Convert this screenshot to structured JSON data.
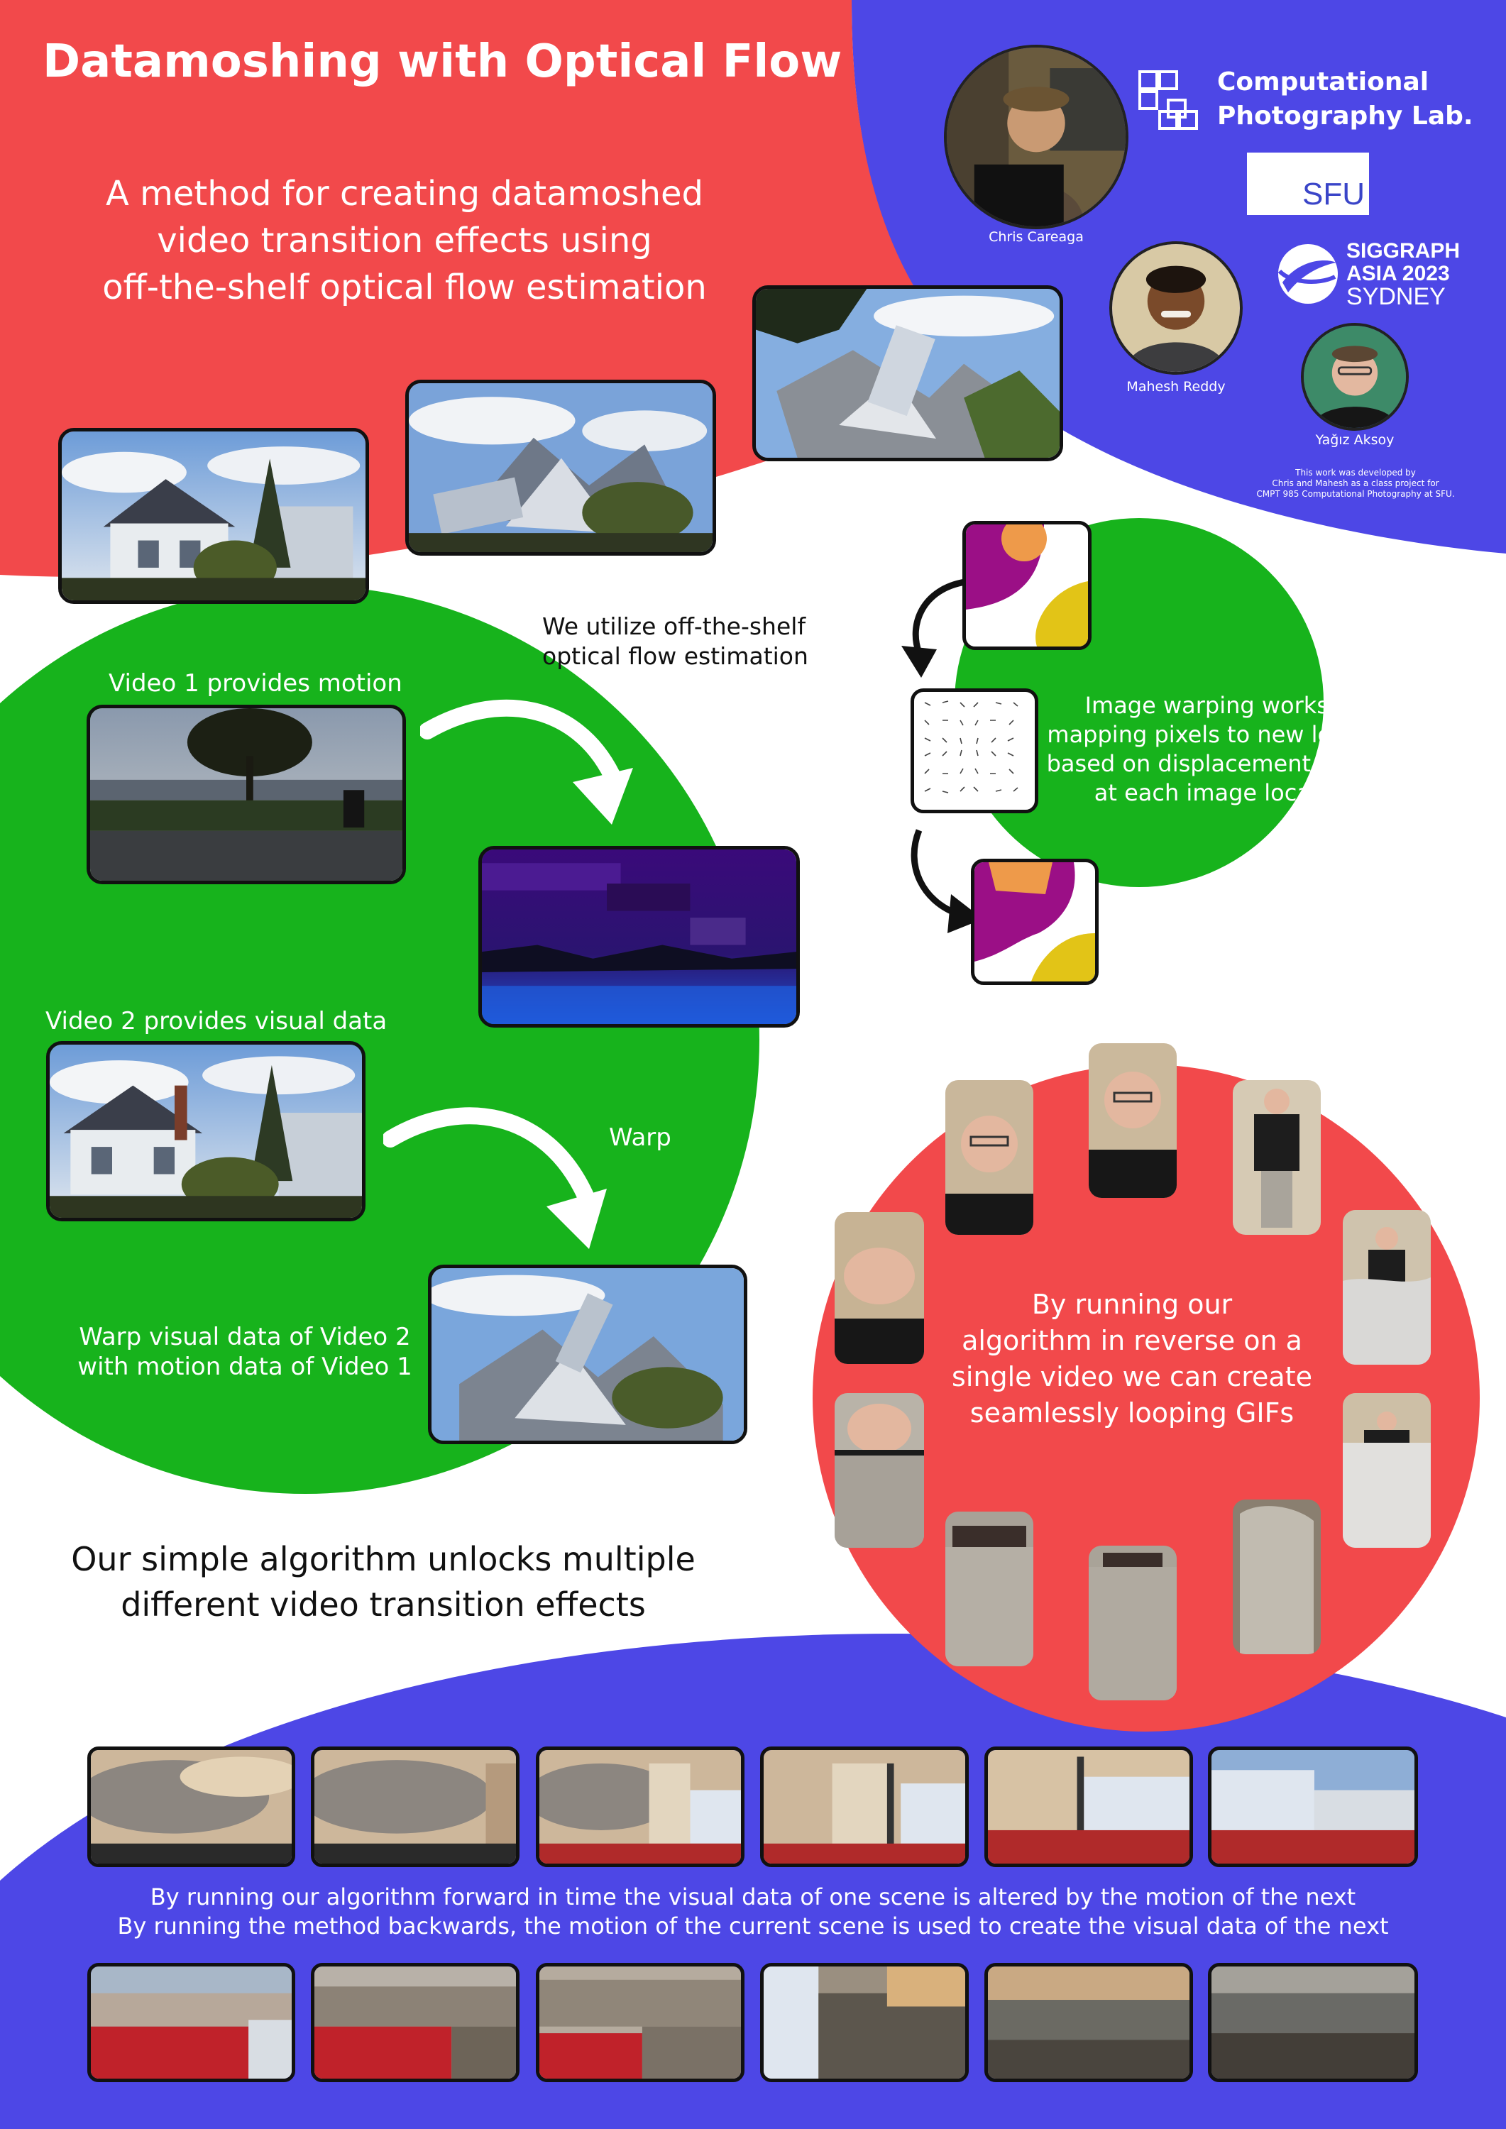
{
  "title": "Datamoshing with Optical Flow",
  "subtitle": [
    "A method for creating datamoshed",
    "video transition effects using",
    "off-the-shelf optical flow estimation"
  ],
  "lab": {
    "line1": "Computational",
    "line2": "Photography Lab."
  },
  "sfu": "SFU",
  "siggraph": {
    "line1": "SIGGRAPH",
    "line2": "ASIA 2023",
    "line3": "SYDNEY"
  },
  "authors": [
    "Chris Careaga",
    "Mahesh Reddy",
    "Yağız Aksoy"
  ],
  "note": [
    "This work was developed by",
    "Chris and Mahesh as a class project for",
    "CMPT 985 Computational Photography at SFU."
  ],
  "flow_label": [
    "We utilize off-the-shelf",
    "optical flow estimation"
  ],
  "video1_label": "Video 1 provides motion",
  "video2_label": "Video 2 provides visual data",
  "warp_label": "Warp",
  "warp_desc": [
    "Warp visual data of Video 2",
    "with motion data of Video 1"
  ],
  "warping_desc": [
    "Image warping works by",
    "mapping pixels to new location",
    "based on displacement vectors",
    "at each image location"
  ],
  "loop_desc": [
    "By running our",
    "algorithm in reverse on a",
    "single video we can create",
    "seamlessly looping GIFs"
  ],
  "unlock": [
    "Our simple algorithm unlocks multiple",
    "different video transition effects"
  ],
  "bottom_desc": [
    "By running our algorithm forward in time the visual data of one scene is altered by the motion of the next",
    "By running the method backwards, the motion of the current scene is used to create the visual data of the next"
  ],
  "colors": {
    "red": "#f2494b",
    "blue": "#4d47e6",
    "green": "#17b31c",
    "purple": "#9b0f86",
    "orange": "#ee9a4a",
    "yellow": "#e2c417"
  }
}
